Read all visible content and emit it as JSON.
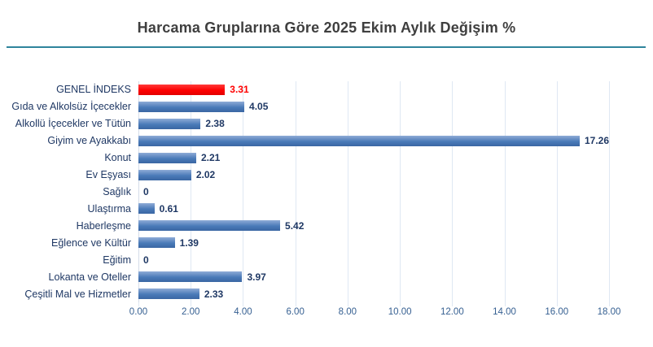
{
  "colors": {
    "background": "#ffffff",
    "title_text": "#3f3f3f",
    "rule": "#2f849c",
    "bar_blue": "#4a7ab8",
    "bar_blue_light": "#8fabd6",
    "bar_blue_dark": "#3a66a3",
    "bar_red": "#fe0000",
    "bar_red_light": "#ff3b3b",
    "bar_red_dark": "#e20000",
    "category_text": "#1f3864",
    "value_text": "#1f3864",
    "value_text_highlight": "#fe0000",
    "gridline": "#dfe8f3",
    "axis_line": "#d5dde9",
    "tick_text": "#355f91"
  },
  "chart_data": {
    "type": "bar",
    "orientation": "horizontal",
    "title": "Harcama Gruplarına Göre 2025 Ekim Aylık Değişim %",
    "categories": [
      "GENEL İNDEKS",
      "Gıda ve Alkolsüz İçecekler",
      "Alkollü İçecekler ve Tütün",
      "Giyim ve Ayakkabı",
      "Konut",
      "Ev Eşyası",
      "Sağlık",
      "Ulaştırma",
      "Haberleşme",
      "Eğlence ve Kültür",
      "Eğitim",
      "Lokanta ve Oteller",
      "Çeşitli Mal ve Hizmetler"
    ],
    "values": [
      3.31,
      4.05,
      2.38,
      17.26,
      2.21,
      2.02,
      0,
      0.61,
      5.42,
      1.39,
      0,
      3.97,
      2.33
    ],
    "value_labels": [
      "3.31",
      "4.05",
      "2.38",
      "17.26",
      "2.21",
      "2.02",
      "0",
      "0.61",
      "5.42",
      "1.39",
      "0",
      "3.97",
      "2.33"
    ],
    "bar_variants": [
      "red",
      "blue",
      "blue",
      "blue",
      "blue",
      "blue",
      "blue",
      "blue",
      "blue",
      "blue",
      "blue",
      "blue",
      "blue"
    ],
    "highlight_index": 0,
    "xlim": [
      0,
      18
    ],
    "x_ticks": [
      "0.00",
      "2.00",
      "4.00",
      "6.00",
      "8.00",
      "10.00",
      "12.00",
      "14.00",
      "16.00",
      "18.00"
    ],
    "grid": "vertical",
    "legend": "none"
  }
}
